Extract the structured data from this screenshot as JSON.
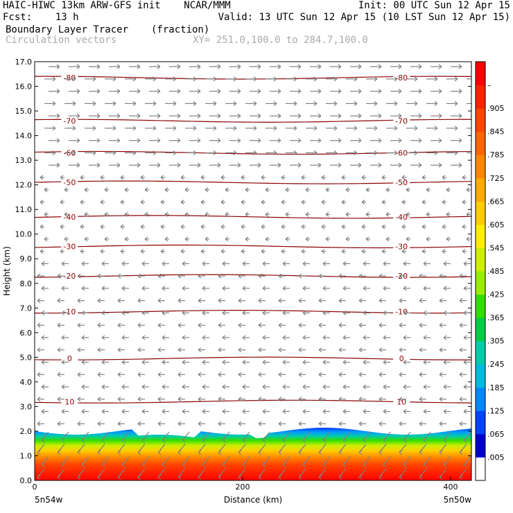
{
  "header": {
    "line1_left": "HAIC-HIWC 13km ARW-GFS init    NCAR/MMM",
    "line1_right": "Init: 00 UTC Sun 12 Apr 15",
    "line2_left": "Fcst:    13 h",
    "line2_right": "Valid: 13 UTC Sun 12 Apr 15 (10 LST Sun 12 Apr 15)",
    "field_name": "Boundary Layer Tracer",
    "field_units": "(fraction)",
    "vector_label": "Circulation vectors",
    "xy_label": "XY= 251.0,100.0 to 284.7,100.0"
  },
  "chart_data": {
    "type": "heatmap",
    "xlabel": "Distance (km)",
    "ylabel": "Height (km)",
    "xlim": [
      0,
      420
    ],
    "ylim": [
      0,
      17
    ],
    "x_ticks": [
      "0",
      "200",
      "400"
    ],
    "y_ticks": [
      "0.0",
      "1.0",
      "2.0",
      "3.0",
      "4.0",
      "5.0",
      "6.0",
      "7.0",
      "8.0",
      "9.0",
      "10.0",
      "11.0",
      "12.0",
      "13.0",
      "14.0",
      "15.0",
      "16.0",
      "17.0"
    ],
    "endpoint_labels": {
      "left": "5n54w",
      "right": "5n50w"
    },
    "colorbar_labels": [
      ".005",
      ".065",
      ".125",
      ".185",
      ".245",
      ".305",
      ".365",
      ".425",
      ".485",
      ".545",
      ".605",
      ".665",
      ".725",
      ".785",
      ".845",
      ".905",
      "–"
    ],
    "colorbar_colors": [
      "#ffffff",
      "#0000cc",
      "#0044ff",
      "#0088ff",
      "#00bbdd",
      "#00ccaa",
      "#00cc44",
      "#33dd00",
      "#99ee00",
      "#ccee00",
      "#ffee00",
      "#ffcc00",
      "#ffaa00",
      "#ff8800",
      "#ff6600",
      "#ff4400",
      "#ff2200",
      "#ff0000"
    ],
    "temperature_contours": [
      {
        "label": "10",
        "height": 3.2
      },
      {
        "label": "0",
        "height": 4.95
      },
      {
        "label": "-10",
        "height": 6.85
      },
      {
        "label": "-20",
        "height": 8.3
      },
      {
        "label": "-30",
        "height": 9.5
      },
      {
        "label": "-40",
        "height": 10.7
      },
      {
        "label": "-50",
        "height": 12.1
      },
      {
        "label": "-60",
        "height": 13.3
      },
      {
        "label": "-70",
        "height": 14.6
      },
      {
        "label": "-80",
        "height": 16.35
      }
    ],
    "boundary_layer_top_km": 2.0,
    "colors": {
      "contour": "#8b0000",
      "vector": "#808080"
    }
  }
}
